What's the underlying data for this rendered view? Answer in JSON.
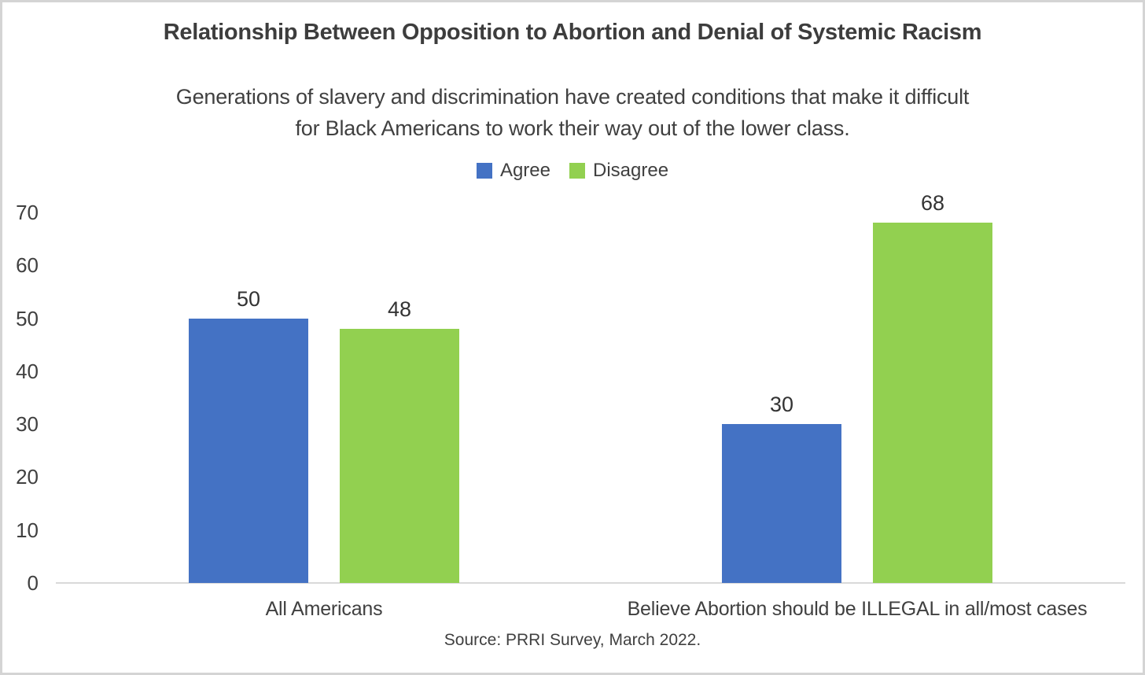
{
  "chart_data": {
    "type": "bar",
    "title": "Relationship Between Opposition to Abortion and Denial of Systemic Racism",
    "subtitle_lines": [
      "Generations of slavery and discrimination have created conditions that make it difficult",
      "for Black Americans to work their way out of the lower class."
    ],
    "categories": [
      "All Americans",
      "Believe Abortion should be ILLEGAL in all/most cases"
    ],
    "series": [
      {
        "name": "Agree",
        "color": "#4472C4",
        "values": [
          50,
          30
        ]
      },
      {
        "name": "Disagree",
        "color": "#92D050",
        "values": [
          48,
          68
        ]
      }
    ],
    "ylim": [
      0,
      70
    ],
    "yticks": [
      0,
      10,
      20,
      30,
      40,
      50,
      60,
      70
    ],
    "grid": false,
    "legend_position": "top",
    "data_labels": true,
    "xlabel": "",
    "ylabel": "",
    "source": "Source: PRRI Survey, March 2022.",
    "colors": {
      "text": "#404040",
      "axis_line": "#d9d9d9",
      "frame_border": "#d4d4d4"
    }
  }
}
